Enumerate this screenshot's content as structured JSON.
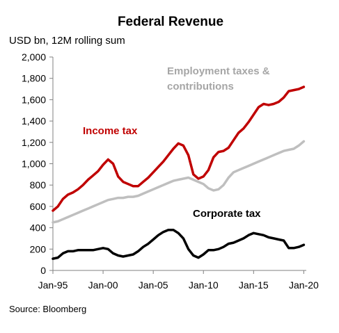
{
  "chart_data": {
    "type": "line",
    "title": "Federal Revenue",
    "subtitle": "USD bn, 12M rolling sum",
    "source": "Source: Bloomberg",
    "xlabel": "",
    "ylabel": "",
    "xlim": [
      1995.0,
      2020.25
    ],
    "ylim": [
      0,
      2000
    ],
    "yticks": [
      0,
      200,
      400,
      600,
      800,
      1000,
      1200,
      1400,
      1600,
      1800,
      2000
    ],
    "yticklabels": [
      "0",
      "200",
      "400",
      "600",
      "800",
      "1,000",
      "1,200",
      "1,400",
      "1,600",
      "1,800",
      "2,000"
    ],
    "xticks": [
      1995,
      2000,
      2005,
      2010,
      2015,
      2020
    ],
    "xticklabels": [
      "Jan-95",
      "Jan-00",
      "Jan-05",
      "Jan-10",
      "Jan-15",
      "Jan-20"
    ],
    "grid": false,
    "legend": "none",
    "series": [
      {
        "name": "Income tax",
        "color": "#c00000",
        "x": [
          1995.0,
          1995.5,
          1996.0,
          1996.5,
          1997.0,
          1997.5,
          1998.0,
          1998.5,
          1999.0,
          1999.5,
          2000.0,
          2000.5,
          2001.0,
          2001.5,
          2002.0,
          2002.5,
          2003.0,
          2003.5,
          2004.0,
          2004.5,
          2005.0,
          2005.5,
          2006.0,
          2006.5,
          2007.0,
          2007.5,
          2008.0,
          2008.5,
          2009.0,
          2009.5,
          2010.0,
          2010.5,
          2011.0,
          2011.5,
          2012.0,
          2012.5,
          2013.0,
          2013.5,
          2014.0,
          2014.5,
          2015.0,
          2015.5,
          2016.0,
          2016.5,
          2017.0,
          2017.5,
          2018.0,
          2018.5,
          2019.0,
          2019.5,
          2020.0
        ],
        "values": [
          560,
          600,
          670,
          710,
          730,
          760,
          800,
          850,
          890,
          930,
          990,
          1040,
          1000,
          880,
          830,
          810,
          790,
          790,
          830,
          870,
          920,
          970,
          1020,
          1080,
          1140,
          1190,
          1170,
          1080,
          900,
          860,
          880,
          940,
          1060,
          1110,
          1120,
          1150,
          1220,
          1290,
          1330,
          1390,
          1460,
          1530,
          1560,
          1550,
          1560,
          1580,
          1620,
          1680,
          1690,
          1700,
          1720
        ]
      },
      {
        "name": "Employment taxes & contributions",
        "color": "#bfbfbf",
        "x": [
          1995.0,
          1995.5,
          1996.0,
          1996.5,
          1997.0,
          1997.5,
          1998.0,
          1998.5,
          1999.0,
          1999.5,
          2000.0,
          2000.5,
          2001.0,
          2001.5,
          2002.0,
          2002.5,
          2003.0,
          2003.5,
          2004.0,
          2004.5,
          2005.0,
          2005.5,
          2006.0,
          2006.5,
          2007.0,
          2007.5,
          2008.0,
          2008.5,
          2009.0,
          2009.5,
          2010.0,
          2010.5,
          2011.0,
          2011.5,
          2012.0,
          2012.5,
          2013.0,
          2013.5,
          2014.0,
          2014.5,
          2015.0,
          2015.5,
          2016.0,
          2016.5,
          2017.0,
          2017.5,
          2018.0,
          2018.5,
          2019.0,
          2019.5,
          2020.0
        ],
        "values": [
          450,
          460,
          480,
          500,
          520,
          540,
          560,
          580,
          600,
          620,
          640,
          660,
          670,
          680,
          680,
          690,
          690,
          700,
          720,
          740,
          760,
          780,
          800,
          820,
          840,
          850,
          860,
          870,
          850,
          830,
          810,
          770,
          750,
          760,
          800,
          870,
          920,
          940,
          960,
          980,
          1000,
          1020,
          1040,
          1060,
          1080,
          1100,
          1120,
          1130,
          1140,
          1170,
          1210
        ]
      },
      {
        "name": "Corporate tax",
        "color": "#000000",
        "x": [
          1995.0,
          1995.5,
          1996.0,
          1996.5,
          1997.0,
          1997.5,
          1998.0,
          1998.5,
          1999.0,
          1999.5,
          2000.0,
          2000.5,
          2001.0,
          2001.5,
          2002.0,
          2002.5,
          2003.0,
          2003.5,
          2004.0,
          2004.5,
          2005.0,
          2005.5,
          2006.0,
          2006.5,
          2007.0,
          2007.5,
          2008.0,
          2008.5,
          2009.0,
          2009.5,
          2010.0,
          2010.5,
          2011.0,
          2011.5,
          2012.0,
          2012.5,
          2013.0,
          2013.5,
          2014.0,
          2014.5,
          2015.0,
          2015.5,
          2016.0,
          2016.5,
          2017.0,
          2017.5,
          2018.0,
          2018.5,
          2019.0,
          2019.5,
          2020.0
        ],
        "values": [
          110,
          120,
          160,
          180,
          180,
          190,
          190,
          190,
          190,
          200,
          210,
          200,
          160,
          140,
          130,
          140,
          150,
          180,
          220,
          250,
          290,
          330,
          360,
          380,
          380,
          350,
          300,
          200,
          140,
          120,
          150,
          190,
          190,
          200,
          220,
          250,
          260,
          280,
          300,
          330,
          350,
          340,
          330,
          310,
          300,
          290,
          280,
          210,
          210,
          220,
          240
        ]
      }
    ],
    "annotations": [
      {
        "name": "income-label",
        "text": "Income tax",
        "color": "#c00000"
      },
      {
        "name": "employment-label-line1",
        "text": "Employment taxes &",
        "color": "#a6a6a6"
      },
      {
        "name": "employment-label-line2",
        "text": "contributions",
        "color": "#a6a6a6"
      },
      {
        "name": "corporate-label",
        "text": "Corporate tax",
        "color": "#000000"
      }
    ]
  }
}
